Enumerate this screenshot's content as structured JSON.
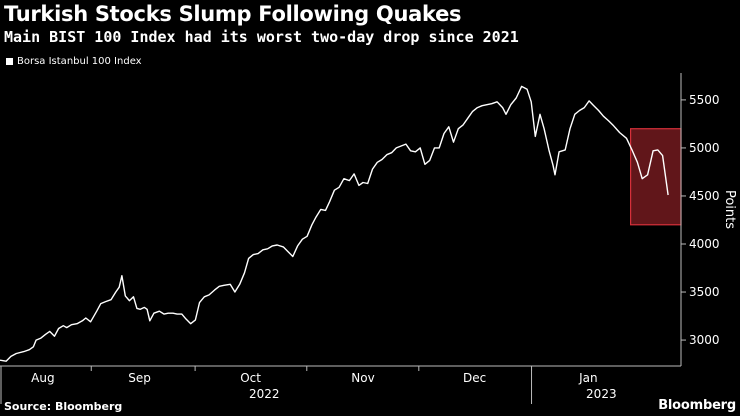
{
  "header": {
    "title": "Turkish Stocks Slump Following Quakes",
    "subtitle": "Main BIST 100 Index had its worst two-day drop since 2021"
  },
  "footer": {
    "source": "Source: Bloomberg",
    "brand": "Bloomberg"
  },
  "chart_data": {
    "type": "line",
    "ylabel": "Points",
    "ylim": [
      2730,
      5780
    ],
    "yticks": [
      3000,
      3500,
      4000,
      4500,
      5000,
      5500
    ],
    "xlim": [
      0,
      100
    ],
    "month_labels": [
      {
        "label": "Aug",
        "x": 6.3
      },
      {
        "label": "Sep",
        "x": 20.5
      },
      {
        "label": "Oct",
        "x": 36.8
      },
      {
        "label": "Nov",
        "x": 53.3
      },
      {
        "label": "Dec",
        "x": 69.7
      },
      {
        "label": "Jan",
        "x": 86.4
      }
    ],
    "year_labels": [
      {
        "label": "2022",
        "x": 38.8
      },
      {
        "label": "2023",
        "x": 88.3
      }
    ],
    "grid": false,
    "legend_position": "top-left",
    "highlight": {
      "x_range": [
        92.6,
        100
      ],
      "y_range": [
        4200,
        5200
      ],
      "color": "#d6303a"
    },
    "colors": {
      "line": "#ffffff",
      "background": "#000000",
      "text": "#ffffff"
    },
    "series": [
      {
        "name": "Borsa Istanbul 100 Index",
        "points": [
          [
            0.0,
            2790
          ],
          [
            0.9,
            2780
          ],
          [
            1.6,
            2830
          ],
          [
            2.4,
            2860
          ],
          [
            3.5,
            2880
          ],
          [
            4.3,
            2900
          ],
          [
            4.9,
            2930
          ],
          [
            5.3,
            3000
          ],
          [
            6.0,
            3020
          ],
          [
            6.7,
            3060
          ],
          [
            7.3,
            3090
          ],
          [
            8.0,
            3040
          ],
          [
            8.6,
            3120
          ],
          [
            9.3,
            3150
          ],
          [
            9.8,
            3130
          ],
          [
            10.5,
            3160
          ],
          [
            11.3,
            3170
          ],
          [
            12.1,
            3200
          ],
          [
            12.6,
            3230
          ],
          [
            13.3,
            3190
          ],
          [
            14.2,
            3300
          ],
          [
            14.8,
            3380
          ],
          [
            15.5,
            3400
          ],
          [
            16.3,
            3420
          ],
          [
            17.0,
            3500
          ],
          [
            17.5,
            3550
          ],
          [
            17.9,
            3670
          ],
          [
            18.4,
            3460
          ],
          [
            19.0,
            3410
          ],
          [
            19.6,
            3450
          ],
          [
            20.1,
            3330
          ],
          [
            20.6,
            3320
          ],
          [
            21.2,
            3340
          ],
          [
            21.6,
            3320
          ],
          [
            22.0,
            3200
          ],
          [
            22.6,
            3280
          ],
          [
            23.4,
            3300
          ],
          [
            24.1,
            3270
          ],
          [
            24.7,
            3280
          ],
          [
            25.4,
            3280
          ],
          [
            26.0,
            3270
          ],
          [
            26.7,
            3270
          ],
          [
            27.3,
            3220
          ],
          [
            28.0,
            3170
          ],
          [
            28.7,
            3210
          ],
          [
            29.3,
            3390
          ],
          [
            30.0,
            3450
          ],
          [
            30.7,
            3470
          ],
          [
            31.5,
            3520
          ],
          [
            32.2,
            3560
          ],
          [
            32.9,
            3570
          ],
          [
            33.8,
            3580
          ],
          [
            34.5,
            3500
          ],
          [
            35.2,
            3580
          ],
          [
            35.9,
            3700
          ],
          [
            36.5,
            3850
          ],
          [
            37.2,
            3890
          ],
          [
            37.9,
            3900
          ],
          [
            38.6,
            3940
          ],
          [
            39.3,
            3950
          ],
          [
            40.0,
            3980
          ],
          [
            40.7,
            3990
          ],
          [
            41.6,
            3970
          ],
          [
            42.3,
            3920
          ],
          [
            43.0,
            3870
          ],
          [
            43.7,
            3980
          ],
          [
            44.4,
            4050
          ],
          [
            45.1,
            4080
          ],
          [
            45.8,
            4200
          ],
          [
            46.4,
            4280
          ],
          [
            47.1,
            4360
          ],
          [
            47.8,
            4350
          ],
          [
            48.4,
            4440
          ],
          [
            49.1,
            4560
          ],
          [
            49.8,
            4590
          ],
          [
            50.5,
            4680
          ],
          [
            51.3,
            4660
          ],
          [
            52.0,
            4730
          ],
          [
            52.7,
            4610
          ],
          [
            53.3,
            4640
          ],
          [
            54.0,
            4630
          ],
          [
            54.7,
            4780
          ],
          [
            55.4,
            4850
          ],
          [
            56.1,
            4880
          ],
          [
            56.8,
            4930
          ],
          [
            57.5,
            4950
          ],
          [
            58.2,
            5000
          ],
          [
            58.9,
            5020
          ],
          [
            59.6,
            5040
          ],
          [
            60.3,
            4970
          ],
          [
            61.0,
            4960
          ],
          [
            61.7,
            5000
          ],
          [
            62.4,
            4830
          ],
          [
            63.1,
            4870
          ],
          [
            63.8,
            5000
          ],
          [
            64.5,
            5000
          ],
          [
            65.2,
            5150
          ],
          [
            65.9,
            5220
          ],
          [
            66.6,
            5060
          ],
          [
            67.3,
            5200
          ],
          [
            68.0,
            5240
          ],
          [
            68.7,
            5310
          ],
          [
            69.4,
            5380
          ],
          [
            70.1,
            5420
          ],
          [
            70.8,
            5440
          ],
          [
            71.5,
            5450
          ],
          [
            72.2,
            5460
          ],
          [
            73.0,
            5480
          ],
          [
            73.8,
            5420
          ],
          [
            74.3,
            5350
          ],
          [
            75.0,
            5450
          ],
          [
            75.8,
            5520
          ],
          [
            76.6,
            5640
          ],
          [
            77.4,
            5610
          ],
          [
            78.0,
            5480
          ],
          [
            78.6,
            5120
          ],
          [
            79.3,
            5350
          ],
          [
            79.9,
            5200
          ],
          [
            80.6,
            4980
          ],
          [
            81.2,
            4820
          ],
          [
            81.5,
            4720
          ],
          [
            82.1,
            4960
          ],
          [
            83.0,
            4980
          ],
          [
            83.7,
            5200
          ],
          [
            84.4,
            5350
          ],
          [
            85.1,
            5390
          ],
          [
            85.8,
            5420
          ],
          [
            86.5,
            5490
          ],
          [
            87.2,
            5440
          ],
          [
            87.9,
            5390
          ],
          [
            88.6,
            5330
          ],
          [
            89.4,
            5280
          ],
          [
            90.1,
            5230
          ],
          [
            91.0,
            5160
          ],
          [
            92.0,
            5100
          ],
          [
            92.8,
            4980
          ],
          [
            93.6,
            4850
          ],
          [
            94.3,
            4680
          ],
          [
            95.1,
            4720
          ],
          [
            95.9,
            4970
          ],
          [
            96.6,
            4980
          ],
          [
            97.3,
            4920
          ],
          [
            98.1,
            4510
          ]
        ]
      }
    ]
  }
}
